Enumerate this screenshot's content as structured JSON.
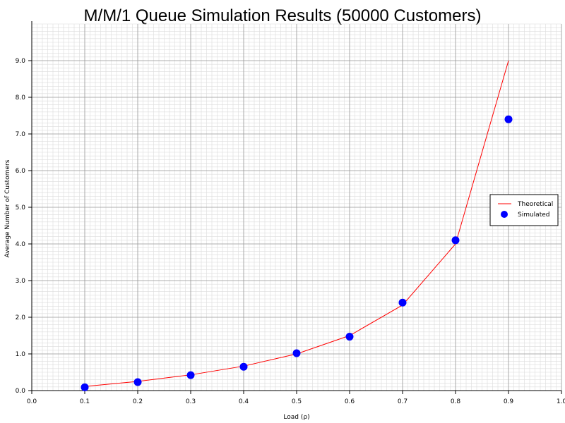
{
  "chart_data": {
    "type": "line",
    "title": "M/M/1 Queue Simulation Results (50000 Customers)",
    "xlabel": "Load (ρ)",
    "ylabel": "Average Number of Customers",
    "xlim": [
      0.0,
      1.0
    ],
    "ylim": [
      0.0,
      10.0
    ],
    "x_major_ticks": [
      0.0,
      0.1,
      0.2,
      0.3,
      0.4,
      0.5,
      0.6,
      0.7,
      0.8,
      0.9,
      1.0
    ],
    "x_tick_labels": [
      "0.0",
      "0.1",
      "0.2",
      "0.3",
      "0.4",
      "0.5",
      "0.6",
      "0.7",
      "0.8",
      "0.9",
      "1.0"
    ],
    "y_major_ticks": [
      0.0,
      1.0,
      2.0,
      3.0,
      4.0,
      5.0,
      6.0,
      7.0,
      8.0,
      9.0
    ],
    "y_tick_labels": [
      "0.0",
      "1.0",
      "2.0",
      "3.0",
      "4.0",
      "5.0",
      "6.0",
      "7.0",
      "8.0",
      "9.0"
    ],
    "grid": true,
    "legend_position": "right",
    "series": [
      {
        "name": "Theoretical",
        "kind": "line",
        "color": "#ff0000",
        "x": [
          0.1,
          0.2,
          0.3,
          0.4,
          0.5,
          0.6,
          0.7,
          0.8,
          0.9
        ],
        "y": [
          0.111,
          0.25,
          0.429,
          0.667,
          1.0,
          1.5,
          2.333,
          4.0,
          9.0
        ]
      },
      {
        "name": "Simulated",
        "kind": "scatter",
        "color": "#0000ff",
        "x": [
          0.1,
          0.2,
          0.3,
          0.4,
          0.5,
          0.6,
          0.7,
          0.8,
          0.9
        ],
        "y": [
          0.09,
          0.23,
          0.42,
          0.65,
          1.02,
          1.47,
          2.4,
          4.1,
          7.4
        ]
      }
    ]
  }
}
